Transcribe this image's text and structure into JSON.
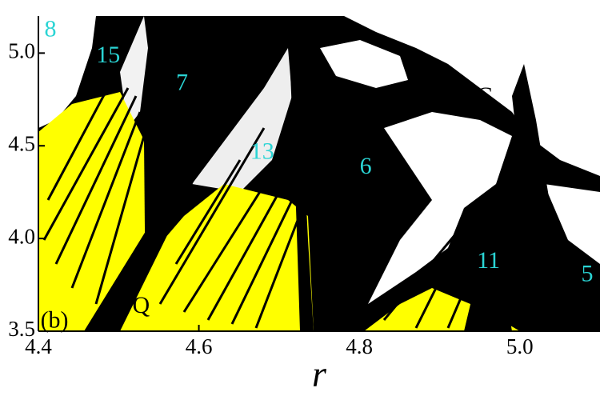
{
  "chart_data": {
    "type": "region-map",
    "x_label": "r",
    "xlim": [
      4.4,
      5.1
    ],
    "ylim": [
      3.5,
      5.2
    ],
    "xticks": [
      {
        "value": 4.4,
        "label": "4.4"
      },
      {
        "value": 4.6,
        "label": "4.6"
      },
      {
        "value": 4.8,
        "label": "4.8"
      },
      {
        "value": 5.0,
        "label": "5.0"
      }
    ],
    "yticks": [
      {
        "value": 3.5,
        "label": "3.5"
      },
      {
        "value": 4.0,
        "label": "4.0"
      },
      {
        "value": 4.5,
        "label": "4.5"
      },
      {
        "value": 5.0,
        "label": "5.0"
      }
    ],
    "annotations": [
      {
        "text": "8",
        "x": 4.415,
        "y": 5.12,
        "color": "#2ad4d4"
      },
      {
        "text": "15",
        "x": 4.487,
        "y": 4.98,
        "color": "#2ad4d4"
      },
      {
        "text": "7",
        "x": 4.579,
        "y": 4.83,
        "color": "#2ad4d4"
      },
      {
        "text": "13",
        "x": 4.679,
        "y": 4.46,
        "color": "#2ad4d4"
      },
      {
        "text": "6",
        "x": 4.808,
        "y": 4.38,
        "color": "#2ad4d4"
      },
      {
        "text": "C",
        "x": 4.956,
        "y": 4.76,
        "color": "#000000"
      },
      {
        "text": "11",
        "x": 4.961,
        "y": 3.87,
        "color": "#2ad4d4"
      },
      {
        "text": "5",
        "x": 5.084,
        "y": 3.8,
        "color": "#2ad4d4"
      },
      {
        "text": "Q",
        "x": 4.528,
        "y": 3.63,
        "color": "#000000"
      },
      {
        "text": "(b)",
        "x": 4.42,
        "y": 3.55,
        "color": "#000000"
      }
    ]
  }
}
